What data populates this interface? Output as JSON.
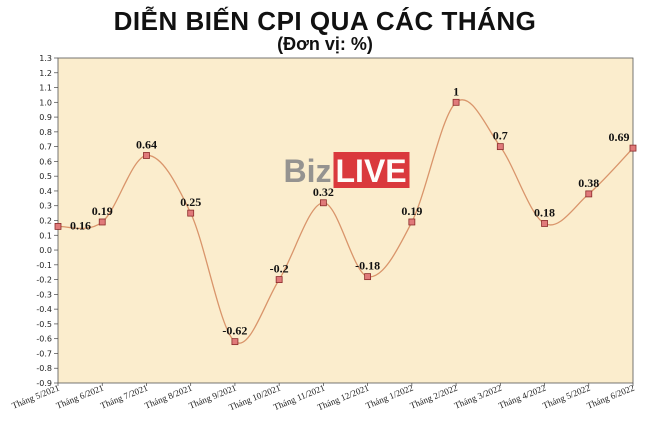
{
  "chart_data": {
    "type": "line",
    "title": "DIỄN BIẾN CPI QUA CÁC THÁNG",
    "subtitle": "(Đơn vị: %)",
    "categories": [
      "Tháng 5/2021",
      "Tháng 6/2021",
      "Tháng 7/2021",
      "Tháng 8/2021",
      "Tháng 9/2021",
      "Tháng 10/2021",
      "Tháng 11/2021",
      "Tháng 12/2021",
      "Tháng 1/2022",
      "Tháng 2/2022",
      "Tháng 3/2022",
      "Tháng 4/2022",
      "Tháng 5/2022",
      "Tháng 6/2022"
    ],
    "values": [
      0.16,
      0.19,
      0.64,
      0.25,
      -0.62,
      -0.2,
      0.32,
      -0.18,
      0.19,
      1,
      0.7,
      0.18,
      0.38,
      0.69
    ],
    "value_labels": [
      "0.16",
      "0.19",
      "0.64",
      "0.25",
      "-0.62",
      "-0.2",
      "0.32",
      "-0.18",
      "0.19",
      "1",
      "0.7",
      "0.18",
      "0.38",
      "0.69"
    ],
    "ylim": [
      -0.9,
      1.3
    ],
    "yticks": [
      "1.3",
      "1.2",
      "1.1",
      "1.0",
      "0.9",
      "0.8",
      "0.7",
      "0.6",
      "0.5",
      "0.4",
      "0.3",
      "0.2",
      "0.1",
      "0.0",
      "-0.1",
      "-0.2",
      "-0.3",
      "-0.4",
      "-0.5",
      "-0.6",
      "-0.7",
      "-0.8",
      "-0.9"
    ],
    "smooth": true,
    "grid": false,
    "colors": {
      "plot_background": "#fbedcd",
      "line": "#d9956b",
      "marker_fill": "#e07a7a",
      "marker_stroke": "#8a2a2a"
    }
  },
  "watermark": {
    "part1": "Biz",
    "part2": "LIVE",
    "part2_bg": "#d7262e"
  }
}
